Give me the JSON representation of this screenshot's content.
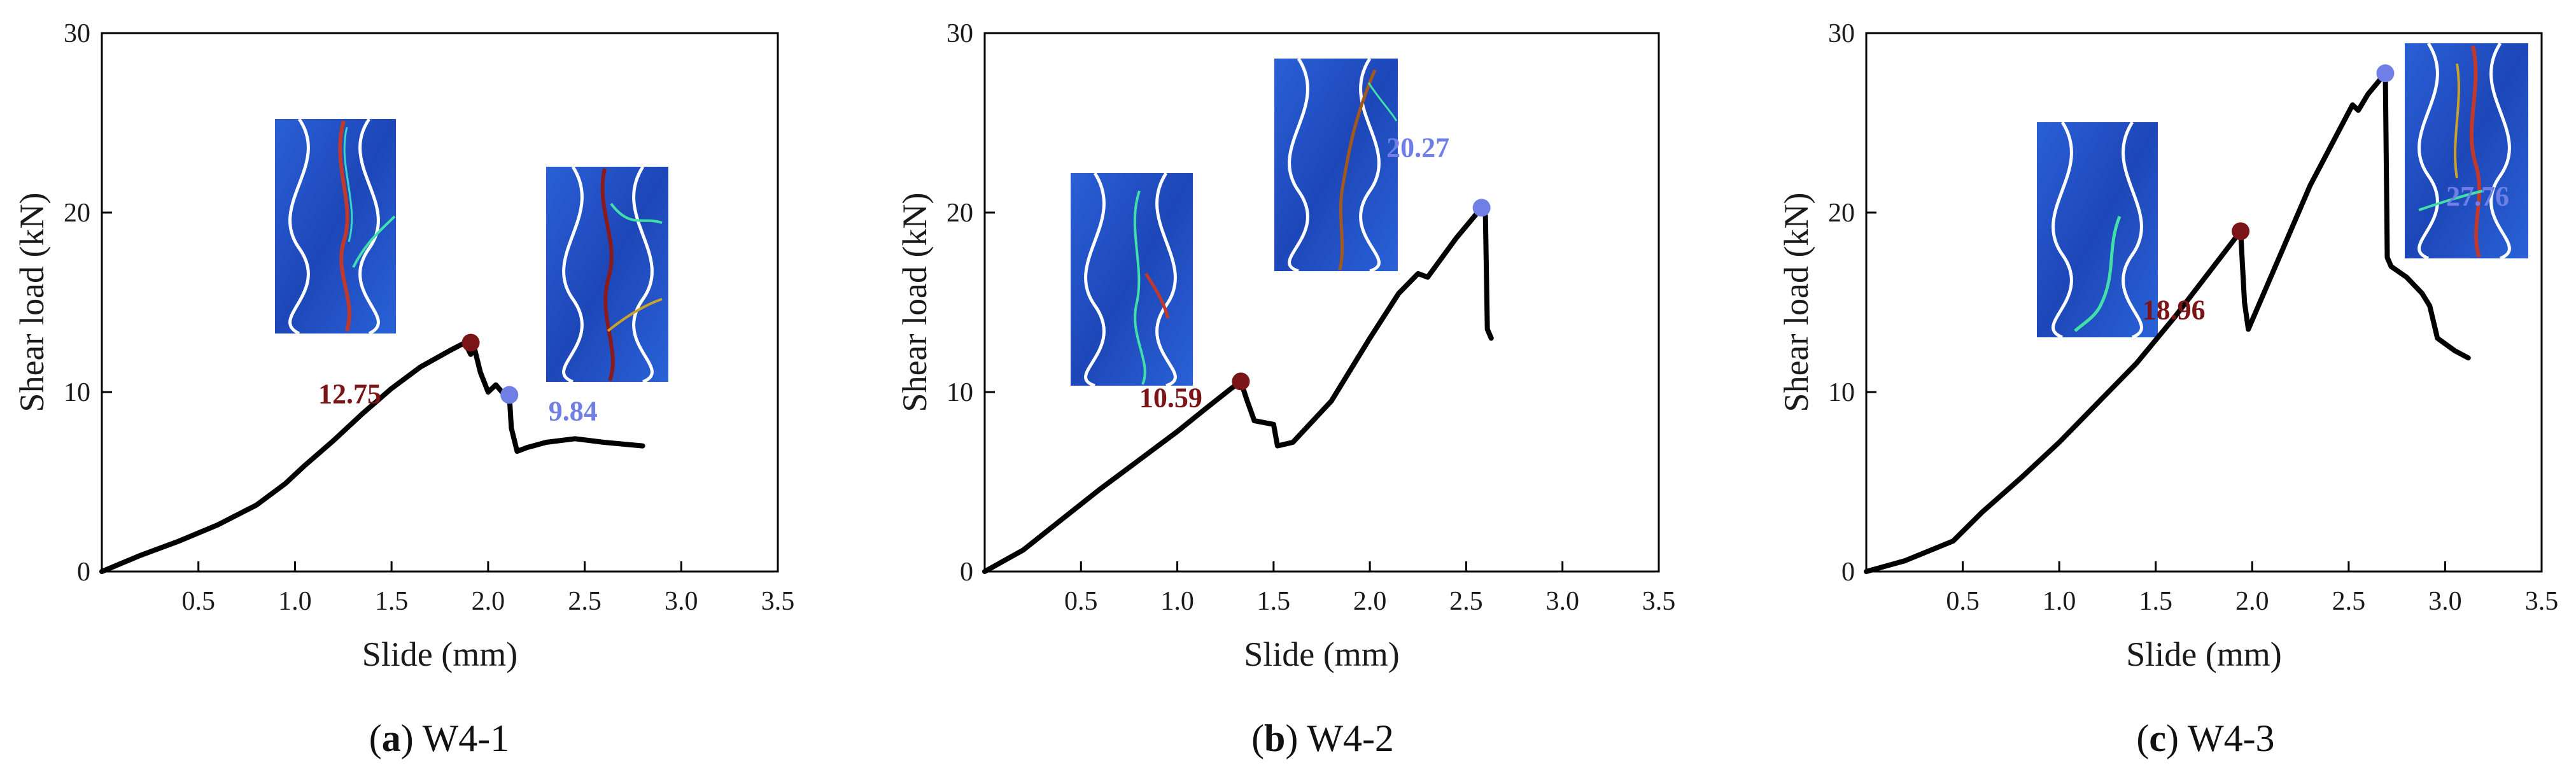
{
  "chart_data": [
    {
      "type": "line",
      "id": "a",
      "caption_letter": "a",
      "caption_text": " W4-1",
      "xlabel": "Slide (mm)",
      "ylabel": "Shear load (kN)",
      "xlim": [
        0,
        3.5
      ],
      "ylim": [
        0,
        30
      ],
      "xticks": [
        "0.5",
        "1.0",
        "1.5",
        "2.0",
        "2.5",
        "3.0",
        "3.5"
      ],
      "yticks": [
        "0",
        "10",
        "20",
        "30"
      ],
      "series": [
        {
          "name": "W4-1",
          "x": [
            0,
            0.2,
            0.4,
            0.6,
            0.8,
            0.95,
            1.05,
            1.2,
            1.35,
            1.5,
            1.65,
            1.8,
            1.88,
            1.91,
            1.93,
            1.96,
            2.0,
            2.04,
            2.08,
            2.11,
            2.12,
            2.15,
            2.2,
            2.3,
            2.45,
            2.6,
            2.8
          ],
          "y": [
            0,
            0.9,
            1.7,
            2.6,
            3.7,
            4.9,
            5.9,
            7.3,
            8.8,
            10.2,
            11.4,
            12.3,
            12.75,
            12.1,
            12.4,
            11.1,
            10.0,
            10.4,
            9.9,
            9.84,
            8.0,
            6.7,
            6.9,
            7.2,
            7.4,
            7.2,
            7.0
          ]
        }
      ],
      "markers": [
        {
          "x": 1.91,
          "y": 12.75,
          "label": "12.75",
          "color": "#7b1416"
        },
        {
          "x": 2.11,
          "y": 9.84,
          "label": "9.84",
          "color": "#6f7fe6"
        }
      ]
    },
    {
      "type": "line",
      "id": "b",
      "caption_letter": "b",
      "caption_text": " W4-2",
      "xlabel": "Slide (mm)",
      "ylabel": "Shear load (kN)",
      "xlim": [
        0,
        3.5
      ],
      "ylim": [
        0,
        30
      ],
      "xticks": [
        "0.5",
        "1.0",
        "1.5",
        "2.0",
        "2.5",
        "3.0",
        "3.5"
      ],
      "yticks": [
        "0",
        "10",
        "20",
        "30"
      ],
      "series": [
        {
          "name": "W4-2",
          "x": [
            0,
            0.2,
            0.4,
            0.6,
            0.8,
            1.0,
            1.15,
            1.28,
            1.33,
            1.36,
            1.4,
            1.45,
            1.5,
            1.52,
            1.6,
            1.8,
            2.0,
            2.15,
            2.25,
            2.3,
            2.45,
            2.58,
            2.6,
            2.61,
            2.63
          ],
          "y": [
            0,
            1.2,
            2.9,
            4.6,
            6.2,
            7.8,
            9.1,
            10.2,
            10.59,
            9.6,
            8.4,
            8.3,
            8.2,
            7.0,
            7.2,
            9.5,
            13.0,
            15.5,
            16.6,
            16.4,
            18.6,
            20.27,
            19.8,
            13.5,
            13.0
          ]
        }
      ],
      "markers": [
        {
          "x": 1.33,
          "y": 10.59,
          "label": "10.59",
          "color": "#7b1416"
        },
        {
          "x": 2.58,
          "y": 20.27,
          "label": "20.27",
          "color": "#6f7fe6"
        }
      ]
    },
    {
      "type": "line",
      "id": "c",
      "caption_letter": "c",
      "caption_text": " W4-3",
      "xlabel": "Slide (mm)",
      "ylabel": "Shear load (kN)",
      "xlim": [
        0,
        3.5
      ],
      "ylim": [
        0,
        30
      ],
      "xticks": [
        "0.5",
        "1.0",
        "1.5",
        "2.0",
        "2.5",
        "3.0",
        "3.5"
      ],
      "yticks": [
        "0",
        "10",
        "20",
        "30"
      ],
      "series": [
        {
          "name": "W4-3",
          "x": [
            0,
            0.2,
            0.45,
            0.6,
            0.8,
            1.0,
            1.2,
            1.4,
            1.6,
            1.8,
            1.94,
            1.96,
            1.98,
            2.1,
            2.3,
            2.5,
            2.52,
            2.55,
            2.6,
            2.67,
            2.69,
            2.7,
            2.72,
            2.8,
            2.88,
            2.92,
            2.96,
            3.05,
            3.12
          ],
          "y": [
            0,
            0.6,
            1.7,
            3.3,
            5.2,
            7.2,
            9.4,
            11.6,
            14.2,
            17.0,
            18.96,
            15.0,
            13.5,
            16.5,
            21.5,
            25.6,
            26.0,
            25.7,
            26.6,
            27.5,
            27.76,
            17.5,
            17.0,
            16.4,
            15.5,
            14.8,
            13.0,
            12.3,
            11.9
          ]
        }
      ],
      "markers": [
        {
          "x": 1.94,
          "y": 18.96,
          "label": "18.96",
          "color": "#7b1416"
        },
        {
          "x": 2.69,
          "y": 27.76,
          "label": "27.76",
          "color": "#6f7fe6"
        }
      ]
    }
  ],
  "colors": {
    "curve": "#000000",
    "peak_marker": "#7b1416",
    "residual_marker": "#6f7fe6",
    "thumb_background": "#1e4fc4"
  }
}
